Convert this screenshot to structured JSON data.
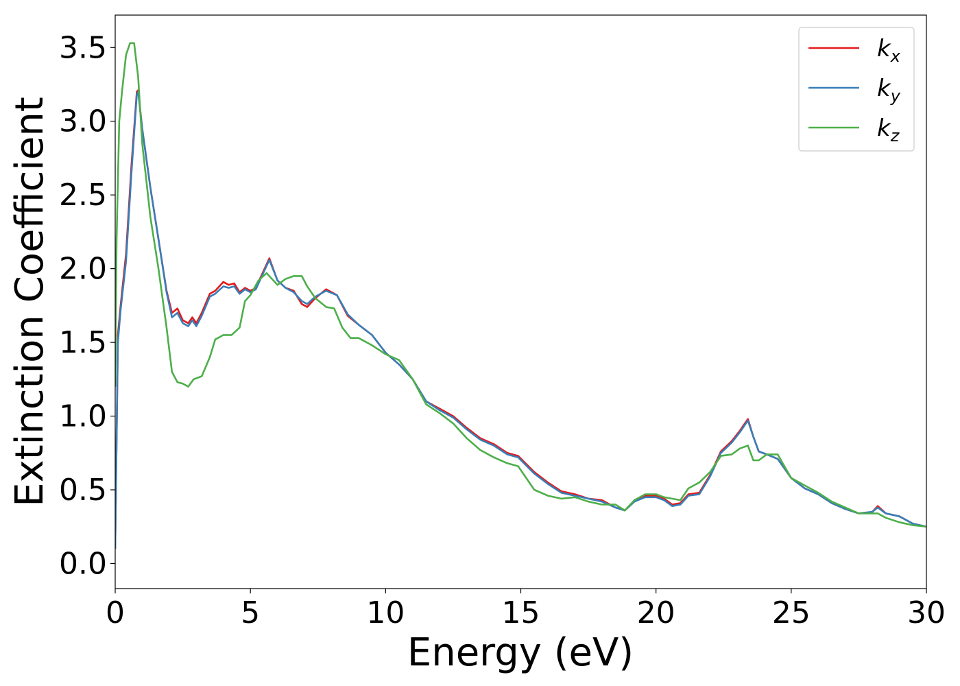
{
  "chart_data": {
    "type": "line",
    "xlabel": "Energy (eV)",
    "ylabel": "Extinction Coefficient",
    "xlim": [
      0,
      30
    ],
    "ylim": [
      -0.17,
      3.72
    ],
    "xticks": [
      0,
      5,
      10,
      15,
      20,
      25,
      30
    ],
    "xtick_labels": [
      "0",
      "5",
      "10",
      "15",
      "20",
      "25",
      "30"
    ],
    "yticks": [
      0.0,
      0.5,
      1.0,
      1.5,
      2.0,
      2.5,
      3.0,
      3.5
    ],
    "ytick_labels": [
      "0.0",
      "0.5",
      "1.0",
      "1.5",
      "2.0",
      "2.5",
      "3.0",
      "3.5"
    ],
    "grid": false,
    "legend_position": "top-right",
    "series": [
      {
        "name": "kx",
        "label_base": "k",
        "label_sub": "x",
        "color": "#e41a1c",
        "x": [
          0,
          0.1,
          0.2,
          0.4,
          0.6,
          0.8,
          0.85,
          1.0,
          1.3,
          1.6,
          1.9,
          2.1,
          2.3,
          2.5,
          2.7,
          2.85,
          3.0,
          3.2,
          3.5,
          3.7,
          4.0,
          4.2,
          4.4,
          4.6,
          4.8,
          5.0,
          5.2,
          5.4,
          5.7,
          6.0,
          6.3,
          6.6,
          6.9,
          7.1,
          7.4,
          7.8,
          8.2,
          8.6,
          9.0,
          9.5,
          10.0,
          10.5,
          11.0,
          11.5,
          12.0,
          12.5,
          13.0,
          13.5,
          14.0,
          14.5,
          14.9,
          15.5,
          16.0,
          16.5,
          17.0,
          17.5,
          18.0,
          18.5,
          18.85,
          19.2,
          19.6,
          20.0,
          20.3,
          20.6,
          20.9,
          21.2,
          21.6,
          22.0,
          22.4,
          22.8,
          23.1,
          23.4,
          23.6,
          23.8,
          24.1,
          24.5,
          25.0,
          25.5,
          26.0,
          26.5,
          27.0,
          27.5,
          28.0,
          28.2,
          28.5,
          29.0,
          29.5,
          30.0
        ],
        "y": [
          0.1,
          1.55,
          1.75,
          2.1,
          2.7,
          3.2,
          3.21,
          2.95,
          2.55,
          2.2,
          1.85,
          1.7,
          1.73,
          1.65,
          1.63,
          1.67,
          1.63,
          1.7,
          1.83,
          1.85,
          1.91,
          1.89,
          1.9,
          1.84,
          1.87,
          1.85,
          1.87,
          1.95,
          2.07,
          1.92,
          1.87,
          1.85,
          1.76,
          1.74,
          1.8,
          1.86,
          1.82,
          1.68,
          1.62,
          1.55,
          1.43,
          1.35,
          1.25,
          1.1,
          1.05,
          1.0,
          0.92,
          0.85,
          0.81,
          0.75,
          0.73,
          0.62,
          0.55,
          0.49,
          0.47,
          0.44,
          0.43,
          0.38,
          0.36,
          0.42,
          0.46,
          0.46,
          0.44,
          0.4,
          0.41,
          0.47,
          0.48,
          0.6,
          0.76,
          0.83,
          0.9,
          0.98,
          0.86,
          0.76,
          0.74,
          0.71,
          0.58,
          0.51,
          0.47,
          0.41,
          0.37,
          0.34,
          0.35,
          0.39,
          0.34,
          0.32,
          0.27,
          0.25
        ]
      },
      {
        "name": "ky",
        "label_base": "k",
        "label_sub": "y",
        "color": "#377eb8",
        "x": [
          0,
          0.1,
          0.2,
          0.4,
          0.6,
          0.8,
          0.85,
          1.0,
          1.3,
          1.6,
          1.9,
          2.1,
          2.3,
          2.5,
          2.7,
          2.85,
          3.0,
          3.2,
          3.5,
          3.7,
          4.0,
          4.2,
          4.4,
          4.6,
          4.8,
          5.0,
          5.2,
          5.4,
          5.7,
          6.0,
          6.3,
          6.6,
          6.9,
          7.1,
          7.4,
          7.8,
          8.2,
          8.6,
          9.0,
          9.5,
          10.0,
          10.5,
          11.0,
          11.5,
          12.0,
          12.5,
          13.0,
          13.5,
          14.0,
          14.5,
          14.9,
          15.5,
          16.0,
          16.5,
          17.0,
          17.5,
          18.0,
          18.5,
          18.85,
          19.2,
          19.6,
          20.0,
          20.3,
          20.6,
          20.9,
          21.2,
          21.6,
          22.0,
          22.4,
          22.8,
          23.1,
          23.4,
          23.6,
          23.8,
          24.1,
          24.5,
          25.0,
          25.5,
          26.0,
          26.5,
          27.0,
          27.5,
          28.0,
          28.2,
          28.5,
          29.0,
          29.5,
          30.0
        ],
        "y": [
          0.1,
          1.5,
          1.72,
          2.05,
          2.65,
          3.18,
          3.2,
          2.95,
          2.55,
          2.2,
          1.84,
          1.67,
          1.7,
          1.63,
          1.61,
          1.65,
          1.61,
          1.68,
          1.81,
          1.83,
          1.88,
          1.87,
          1.88,
          1.83,
          1.86,
          1.84,
          1.86,
          1.94,
          2.06,
          1.92,
          1.87,
          1.84,
          1.78,
          1.76,
          1.81,
          1.85,
          1.82,
          1.69,
          1.62,
          1.55,
          1.43,
          1.35,
          1.25,
          1.1,
          1.04,
          0.99,
          0.91,
          0.84,
          0.8,
          0.74,
          0.72,
          0.61,
          0.54,
          0.48,
          0.46,
          0.44,
          0.42,
          0.38,
          0.36,
          0.42,
          0.45,
          0.45,
          0.43,
          0.39,
          0.4,
          0.46,
          0.47,
          0.59,
          0.75,
          0.82,
          0.89,
          0.97,
          0.86,
          0.76,
          0.74,
          0.71,
          0.58,
          0.51,
          0.47,
          0.41,
          0.37,
          0.34,
          0.35,
          0.38,
          0.34,
          0.32,
          0.27,
          0.25
        ]
      },
      {
        "name": "kz",
        "label_base": "k",
        "label_sub": "z",
        "color": "#4daf4a",
        "x": [
          0,
          0.05,
          0.15,
          0.25,
          0.4,
          0.55,
          0.7,
          0.85,
          1.0,
          1.3,
          1.6,
          1.9,
          2.1,
          2.3,
          2.5,
          2.7,
          2.9,
          3.2,
          3.5,
          3.7,
          4.0,
          4.3,
          4.6,
          4.8,
          5.0,
          5.3,
          5.6,
          6.0,
          6.3,
          6.6,
          6.9,
          7.1,
          7.4,
          7.8,
          8.1,
          8.4,
          8.7,
          9.0,
          9.5,
          10.0,
          10.5,
          11.0,
          11.5,
          12.0,
          12.5,
          13.0,
          13.5,
          14.0,
          14.5,
          14.9,
          15.5,
          16.0,
          16.5,
          17.0,
          17.5,
          18.0,
          18.5,
          18.85,
          19.2,
          19.6,
          20.0,
          20.3,
          20.6,
          20.9,
          21.2,
          21.6,
          22.0,
          22.4,
          22.8,
          23.1,
          23.4,
          23.6,
          23.8,
          24.1,
          24.5,
          25.0,
          25.5,
          26.0,
          26.5,
          27.0,
          27.5,
          28.0,
          28.2,
          28.5,
          29.0,
          29.5,
          30.0
        ],
        "y": [
          1.2,
          2.2,
          3.0,
          3.2,
          3.45,
          3.53,
          3.53,
          3.3,
          2.85,
          2.35,
          2.0,
          1.6,
          1.3,
          1.23,
          1.22,
          1.2,
          1.25,
          1.27,
          1.4,
          1.52,
          1.55,
          1.55,
          1.6,
          1.78,
          1.82,
          1.92,
          1.97,
          1.89,
          1.93,
          1.95,
          1.95,
          1.88,
          1.8,
          1.74,
          1.73,
          1.6,
          1.53,
          1.53,
          1.48,
          1.42,
          1.38,
          1.25,
          1.08,
          1.02,
          0.95,
          0.85,
          0.77,
          0.72,
          0.68,
          0.66,
          0.5,
          0.46,
          0.44,
          0.45,
          0.42,
          0.4,
          0.4,
          0.36,
          0.43,
          0.47,
          0.47,
          0.45,
          0.44,
          0.43,
          0.51,
          0.55,
          0.62,
          0.73,
          0.74,
          0.78,
          0.8,
          0.7,
          0.7,
          0.74,
          0.74,
          0.58,
          0.53,
          0.48,
          0.42,
          0.38,
          0.34,
          0.34,
          0.34,
          0.31,
          0.28,
          0.26,
          0.25
        ]
      }
    ]
  }
}
